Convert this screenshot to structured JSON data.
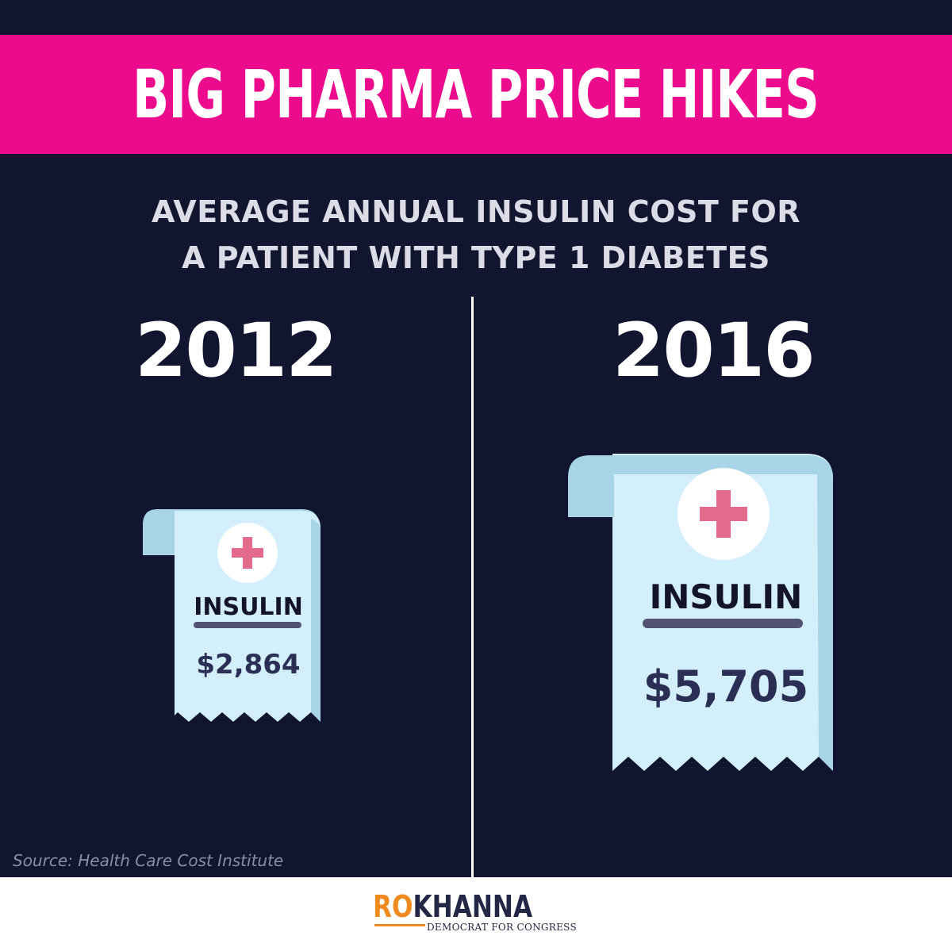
{
  "banner": {
    "title": "BIG PHARMA PRICE HIKES"
  },
  "subtitle": {
    "line1": "AVERAGE ANNUAL INSULIN COST FOR",
    "line2": "A PATIENT WITH TYPE 1 DIABETES"
  },
  "panels": [
    {
      "year": "2012",
      "label": "INSULIN",
      "price": "$2,864"
    },
    {
      "year": "2016",
      "label": "INSULIN",
      "price": "$5,705"
    }
  ],
  "source": "Source: Health Care Cost Institute",
  "logo": {
    "first": "RO",
    "last": "KHANNA",
    "tagline": "DEMOCRAT FOR CONGRESS"
  },
  "colors": {
    "background": "#121530",
    "banner": "#ec0b8c",
    "receipt": "#d2effb",
    "receipt_edge": "#a8d4e8",
    "cross": "#e36a8c",
    "logo_accent": "#ef8a1e"
  },
  "icons": [
    "receipt-icon",
    "medical-cross-icon"
  ]
}
